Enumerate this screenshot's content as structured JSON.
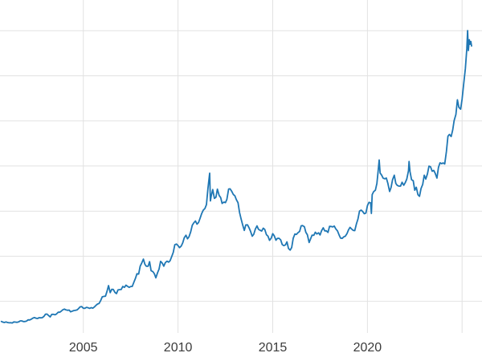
{
  "chart_data": {
    "type": "line",
    "title": "",
    "xlabel": "",
    "ylabel": "",
    "grid": true,
    "legend": "none",
    "background": "#ffffff",
    "gridline_color": "#e2e2e2",
    "tick_label_color": "#3b3b3b",
    "xlim": [
      2000.6,
      2026.05
    ],
    "ylim": [
      150,
      3840
    ],
    "x_gridlines": [
      2005,
      2010,
      2015,
      2020,
      2025
    ],
    "y_gridlines": [
      500,
      1000,
      1500,
      2000,
      2500,
      3000,
      3500
    ],
    "x_ticks": [
      {
        "value": 2005,
        "label": "2005"
      },
      {
        "value": 2010,
        "label": "2010"
      },
      {
        "value": 2015,
        "label": "2015"
      },
      {
        "value": 2020,
        "label": "2020"
      }
    ],
    "series": [
      {
        "color": "#1f77b4",
        "line_width": 1.8,
        "points": [
          [
            2000.67,
            277
          ],
          [
            2000.75,
            270
          ],
          [
            2000.83,
            266
          ],
          [
            2000.92,
            272
          ],
          [
            2001,
            266
          ],
          [
            2001.08,
            262
          ],
          [
            2001.17,
            263
          ],
          [
            2001.25,
            260
          ],
          [
            2001.33,
            272
          ],
          [
            2001.42,
            270
          ],
          [
            2001.5,
            267
          ],
          [
            2001.58,
            272
          ],
          [
            2001.67,
            283
          ],
          [
            2001.75,
            283
          ],
          [
            2001.83,
            276
          ],
          [
            2001.92,
            276
          ],
          [
            2002,
            281
          ],
          [
            2002.08,
            295
          ],
          [
            2002.17,
            294
          ],
          [
            2002.25,
            302
          ],
          [
            2002.33,
            314
          ],
          [
            2002.42,
            321
          ],
          [
            2002.5,
            313
          ],
          [
            2002.58,
            310
          ],
          [
            2002.67,
            319
          ],
          [
            2002.75,
            317
          ],
          [
            2002.83,
            319
          ],
          [
            2002.92,
            333
          ],
          [
            2003,
            357
          ],
          [
            2003.08,
            359
          ],
          [
            2003.17,
            342
          ],
          [
            2003.25,
            328
          ],
          [
            2003.33,
            355
          ],
          [
            2003.42,
            356
          ],
          [
            2003.5,
            351
          ],
          [
            2003.58,
            360
          ],
          [
            2003.67,
            379
          ],
          [
            2003.75,
            379
          ],
          [
            2003.83,
            390
          ],
          [
            2003.92,
            407
          ],
          [
            2004,
            414
          ],
          [
            2004.08,
            405
          ],
          [
            2004.17,
            401
          ],
          [
            2004.25,
            403
          ],
          [
            2004.33,
            384
          ],
          [
            2004.42,
            392
          ],
          [
            2004.5,
            398
          ],
          [
            2004.58,
            400
          ],
          [
            2004.67,
            405
          ],
          [
            2004.75,
            420
          ],
          [
            2004.83,
            439
          ],
          [
            2004.92,
            442
          ],
          [
            2005,
            424
          ],
          [
            2005.08,
            423
          ],
          [
            2005.17,
            434
          ],
          [
            2005.25,
            429
          ],
          [
            2005.33,
            422
          ],
          [
            2005.42,
            430
          ],
          [
            2005.5,
            424
          ],
          [
            2005.58,
            437
          ],
          [
            2005.67,
            456
          ],
          [
            2005.75,
            470
          ],
          [
            2005.83,
            476
          ],
          [
            2005.92,
            510
          ],
          [
            2006,
            550
          ],
          [
            2006.08,
            555
          ],
          [
            2006.17,
            557
          ],
          [
            2006.25,
            611
          ],
          [
            2006.33,
            675
          ],
          [
            2006.42,
            596
          ],
          [
            2006.5,
            634
          ],
          [
            2006.58,
            632
          ],
          [
            2006.67,
            599
          ],
          [
            2006.75,
            586
          ],
          [
            2006.83,
            627
          ],
          [
            2006.92,
            630
          ],
          [
            2007,
            631
          ],
          [
            2007.08,
            665
          ],
          [
            2007.17,
            655
          ],
          [
            2007.25,
            679
          ],
          [
            2007.33,
            667
          ],
          [
            2007.42,
            655
          ],
          [
            2007.5,
            665
          ],
          [
            2007.58,
            665
          ],
          [
            2007.67,
            713
          ],
          [
            2007.75,
            755
          ],
          [
            2007.83,
            806
          ],
          [
            2007.92,
            803
          ],
          [
            2008,
            890
          ],
          [
            2008.08,
            922
          ],
          [
            2008.17,
            968
          ],
          [
            2008.25,
            910
          ],
          [
            2008.33,
            889
          ],
          [
            2008.42,
            889
          ],
          [
            2008.5,
            940
          ],
          [
            2008.58,
            839
          ],
          [
            2008.67,
            829
          ],
          [
            2008.75,
            807
          ],
          [
            2008.83,
            761
          ],
          [
            2008.92,
            816
          ],
          [
            2009,
            858
          ],
          [
            2009.08,
            943
          ],
          [
            2009.17,
            924
          ],
          [
            2009.25,
            890
          ],
          [
            2009.33,
            929
          ],
          [
            2009.42,
            946
          ],
          [
            2009.5,
            934
          ],
          [
            2009.58,
            949
          ],
          [
            2009.67,
            997
          ],
          [
            2009.75,
            1043
          ],
          [
            2009.83,
            1127
          ],
          [
            2009.92,
            1135
          ],
          [
            2010,
            1118
          ],
          [
            2010.08,
            1095
          ],
          [
            2010.17,
            1113
          ],
          [
            2010.25,
            1149
          ],
          [
            2010.33,
            1205
          ],
          [
            2010.42,
            1233
          ],
          [
            2010.5,
            1193
          ],
          [
            2010.58,
            1216
          ],
          [
            2010.67,
            1271
          ],
          [
            2010.75,
            1342
          ],
          [
            2010.83,
            1370
          ],
          [
            2010.92,
            1390
          ],
          [
            2011,
            1356
          ],
          [
            2011.08,
            1373
          ],
          [
            2011.17,
            1424
          ],
          [
            2011.25,
            1474
          ],
          [
            2011.33,
            1510
          ],
          [
            2011.42,
            1529
          ],
          [
            2011.5,
            1573
          ],
          [
            2011.58,
            1755
          ],
          [
            2011.67,
            1920
          ],
          [
            2011.71,
            1613
          ],
          [
            2011.75,
            1665
          ],
          [
            2011.83,
            1739
          ],
          [
            2011.92,
            1641
          ],
          [
            2012,
            1654
          ],
          [
            2012.08,
            1743
          ],
          [
            2012.17,
            1674
          ],
          [
            2012.25,
            1650
          ],
          [
            2012.33,
            1585
          ],
          [
            2012.42,
            1600
          ],
          [
            2012.5,
            1594
          ],
          [
            2012.58,
            1630
          ],
          [
            2012.67,
            1745
          ],
          [
            2012.75,
            1747
          ],
          [
            2012.83,
            1722
          ],
          [
            2012.92,
            1684
          ],
          [
            2013,
            1671
          ],
          [
            2013.08,
            1628
          ],
          [
            2013.17,
            1593
          ],
          [
            2013.25,
            1485
          ],
          [
            2013.33,
            1414
          ],
          [
            2013.42,
            1343
          ],
          [
            2013.5,
            1286
          ],
          [
            2013.58,
            1347
          ],
          [
            2013.67,
            1348
          ],
          [
            2013.75,
            1316
          ],
          [
            2013.83,
            1276
          ],
          [
            2013.92,
            1221
          ],
          [
            2014,
            1244
          ],
          [
            2014.08,
            1300
          ],
          [
            2014.17,
            1336
          ],
          [
            2014.25,
            1298
          ],
          [
            2014.33,
            1288
          ],
          [
            2014.42,
            1279
          ],
          [
            2014.5,
            1311
          ],
          [
            2014.58,
            1296
          ],
          [
            2014.67,
            1238
          ],
          [
            2014.75,
            1222
          ],
          [
            2014.83,
            1176
          ],
          [
            2014.92,
            1200
          ],
          [
            2015,
            1250
          ],
          [
            2015.08,
            1227
          ],
          [
            2015.17,
            1178
          ],
          [
            2015.25,
            1198
          ],
          [
            2015.33,
            1199
          ],
          [
            2015.42,
            1181
          ],
          [
            2015.5,
            1130
          ],
          [
            2015.58,
            1117
          ],
          [
            2015.67,
            1125
          ],
          [
            2015.75,
            1159
          ],
          [
            2015.83,
            1086
          ],
          [
            2015.92,
            1068
          ],
          [
            2016,
            1097
          ],
          [
            2016.08,
            1199
          ],
          [
            2016.17,
            1246
          ],
          [
            2016.25,
            1242
          ],
          [
            2016.33,
            1260
          ],
          [
            2016.42,
            1276
          ],
          [
            2016.5,
            1337
          ],
          [
            2016.58,
            1340
          ],
          [
            2016.67,
            1327
          ],
          [
            2016.75,
            1266
          ],
          [
            2016.83,
            1238
          ],
          [
            2016.92,
            1152
          ],
          [
            2017,
            1192
          ],
          [
            2017.08,
            1234
          ],
          [
            2017.17,
            1231
          ],
          [
            2017.25,
            1266
          ],
          [
            2017.33,
            1246
          ],
          [
            2017.42,
            1260
          ],
          [
            2017.5,
            1236
          ],
          [
            2017.58,
            1283
          ],
          [
            2017.67,
            1315
          ],
          [
            2017.75,
            1280
          ],
          [
            2017.83,
            1282
          ],
          [
            2017.92,
            1264
          ],
          [
            2018,
            1331
          ],
          [
            2018.08,
            1330
          ],
          [
            2018.17,
            1325
          ],
          [
            2018.25,
            1334
          ],
          [
            2018.33,
            1303
          ],
          [
            2018.42,
            1281
          ],
          [
            2018.5,
            1238
          ],
          [
            2018.58,
            1201
          ],
          [
            2018.67,
            1198
          ],
          [
            2018.75,
            1215
          ],
          [
            2018.83,
            1221
          ],
          [
            2018.92,
            1250
          ],
          [
            2019,
            1292
          ],
          [
            2019.08,
            1320
          ],
          [
            2019.17,
            1301
          ],
          [
            2019.25,
            1286
          ],
          [
            2019.33,
            1284
          ],
          [
            2019.42,
            1359
          ],
          [
            2019.5,
            1413
          ],
          [
            2019.58,
            1500
          ],
          [
            2019.67,
            1511
          ],
          [
            2019.75,
            1495
          ],
          [
            2019.83,
            1471
          ],
          [
            2019.92,
            1479
          ],
          [
            2020,
            1561
          ],
          [
            2020.08,
            1597
          ],
          [
            2020.17,
            1591
          ],
          [
            2020.21,
            1474
          ],
          [
            2020.25,
            1683
          ],
          [
            2020.33,
            1716
          ],
          [
            2020.42,
            1732
          ],
          [
            2020.5,
            1809
          ],
          [
            2020.58,
            1969
          ],
          [
            2020.62,
            2067
          ],
          [
            2020.67,
            1922
          ],
          [
            2020.75,
            1900
          ],
          [
            2020.83,
            1866
          ],
          [
            2020.92,
            1858
          ],
          [
            2021,
            1867
          ],
          [
            2021.08,
            1808
          ],
          [
            2021.17,
            1718
          ],
          [
            2021.25,
            1762
          ],
          [
            2021.33,
            1850
          ],
          [
            2021.42,
            1898
          ],
          [
            2021.5,
            1807
          ],
          [
            2021.58,
            1784
          ],
          [
            2021.67,
            1777
          ],
          [
            2021.75,
            1777
          ],
          [
            2021.83,
            1820
          ],
          [
            2021.92,
            1787
          ],
          [
            2022,
            1816
          ],
          [
            2022.08,
            1856
          ],
          [
            2022.17,
            1948
          ],
          [
            2022.2,
            2050
          ],
          [
            2022.25,
            1937
          ],
          [
            2022.33,
            1848
          ],
          [
            2022.42,
            1837
          ],
          [
            2022.5,
            1732
          ],
          [
            2022.58,
            1765
          ],
          [
            2022.67,
            1681
          ],
          [
            2022.75,
            1664
          ],
          [
            2022.83,
            1750
          ],
          [
            2022.92,
            1797
          ],
          [
            2023,
            1898
          ],
          [
            2023.08,
            1855
          ],
          [
            2023.17,
            1913
          ],
          [
            2023.25,
            1999
          ],
          [
            2023.33,
            1992
          ],
          [
            2023.42,
            1942
          ],
          [
            2023.5,
            1951
          ],
          [
            2023.58,
            1918
          ],
          [
            2023.67,
            1866
          ],
          [
            2023.75,
            1984
          ],
          [
            2023.83,
            2035
          ],
          [
            2023.92,
            2026
          ],
          [
            2024,
            2034
          ],
          [
            2024.08,
            2023
          ],
          [
            2024.17,
            2160
          ],
          [
            2024.25,
            2330
          ],
          [
            2024.33,
            2350
          ],
          [
            2024.42,
            2327
          ],
          [
            2024.5,
            2398
          ],
          [
            2024.58,
            2503
          ],
          [
            2024.67,
            2570
          ],
          [
            2024.75,
            2734
          ],
          [
            2024.83,
            2650
          ],
          [
            2024.92,
            2630
          ],
          [
            2025,
            2740
          ],
          [
            2025.08,
            2900
          ],
          [
            2025.17,
            3080
          ],
          [
            2025.25,
            3300
          ],
          [
            2025.29,
            3500
          ],
          [
            2025.33,
            3280
          ],
          [
            2025.38,
            3400
          ],
          [
            2025.42,
            3350
          ],
          [
            2025.46,
            3380
          ],
          [
            2025.5,
            3330
          ]
        ]
      }
    ]
  }
}
